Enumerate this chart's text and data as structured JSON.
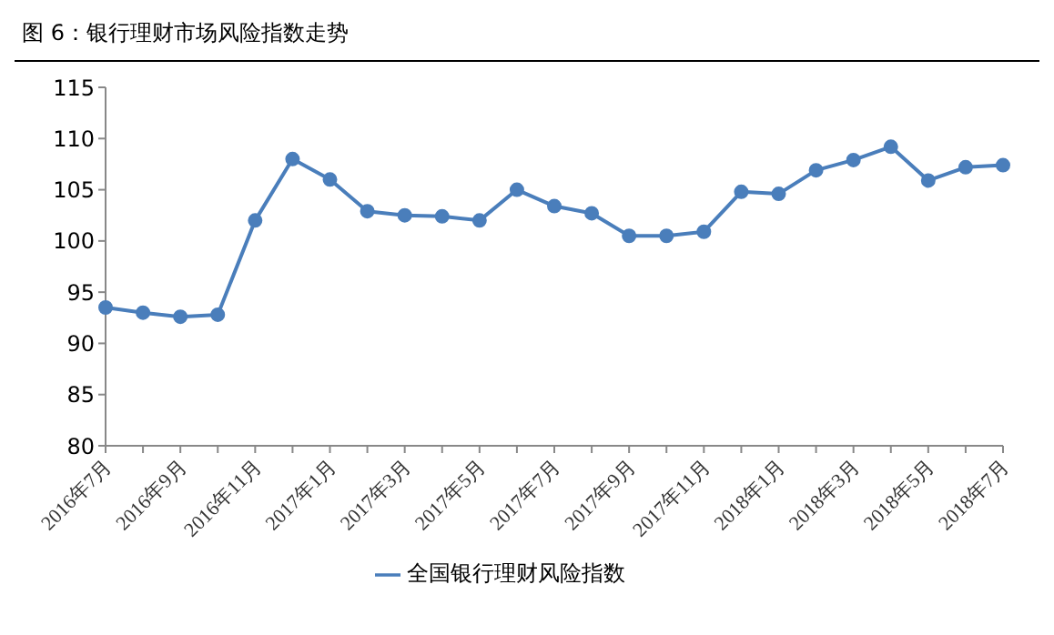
{
  "chart_data": {
    "type": "line",
    "title": "图 6：银行理财市场风险指数走势",
    "categories": [
      "2016年7月",
      null,
      "2016年9月",
      null,
      "2016年11月",
      null,
      "2017年1月",
      null,
      "2017年3月",
      null,
      "2017年5月",
      null,
      "2017年7月",
      null,
      "2017年9月",
      null,
      "2017年11月",
      null,
      "2018年1月",
      null,
      "2018年3月",
      null,
      "2018年5月",
      null,
      "2018年7月"
    ],
    "series": [
      {
        "name": "全国银行理财风险指数",
        "color": "#4a7ebb",
        "values": [
          93.5,
          93.0,
          92.6,
          92.8,
          102.0,
          108.0,
          106.0,
          102.9,
          102.5,
          102.4,
          102.0,
          105.0,
          103.4,
          102.7,
          100.5,
          100.5,
          100.9,
          104.8,
          104.6,
          106.9,
          107.9,
          109.2,
          105.9,
          107.2,
          107.4
        ]
      }
    ],
    "ylim": [
      80,
      115
    ],
    "yticks": [
      80,
      85,
      90,
      95,
      100,
      105,
      110,
      115
    ],
    "grid": false,
    "legend": "bottom",
    "marker": "circle",
    "line_style": "solid"
  }
}
